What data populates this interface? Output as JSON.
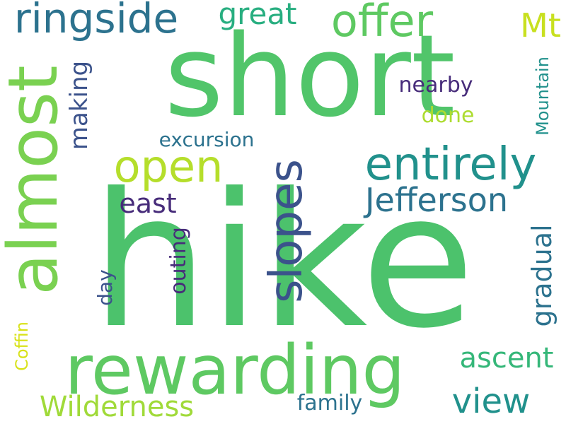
{
  "background": "#ffffff",
  "palette": {
    "dark_purple": "#472c7a",
    "blue": "#3b528b",
    "teal_blue": "#2c728e",
    "teal": "#21918c",
    "green_teal": "#28ae80",
    "green": "#5ec962",
    "light_green": "#addc30",
    "yellow_green": "#c8e020"
  },
  "words": [
    {
      "text": "hike",
      "orientation": "horizontal",
      "color": "#4cc26c"
    },
    {
      "text": "short",
      "orientation": "horizontal",
      "color": "#51c56a"
    },
    {
      "text": "rewarding",
      "orientation": "horizontal",
      "color": "#5ec962"
    },
    {
      "text": "almost",
      "orientation": "vertical",
      "color": "#7ad151"
    },
    {
      "text": "entirely",
      "orientation": "horizontal",
      "color": "#21918c"
    },
    {
      "text": "slopes",
      "orientation": "vertical",
      "color": "#3b528b"
    },
    {
      "text": "open",
      "orientation": "horizontal",
      "color": "#b5de2b"
    },
    {
      "text": "offer",
      "orientation": "horizontal",
      "color": "#5ec962"
    },
    {
      "text": "ringside",
      "orientation": "horizontal",
      "color": "#2c728e"
    },
    {
      "text": "Jefferson",
      "orientation": "horizontal",
      "color": "#2c728e"
    },
    {
      "text": "view",
      "orientation": "horizontal",
      "color": "#21918c"
    },
    {
      "text": "Mt",
      "orientation": "horizontal",
      "color": "#c8e020"
    },
    {
      "text": "great",
      "orientation": "horizontal",
      "color": "#28ae80"
    },
    {
      "text": "Wilderness",
      "orientation": "horizontal",
      "color": "#a0da39"
    },
    {
      "text": "ascent",
      "orientation": "horizontal",
      "color": "#35b779"
    },
    {
      "text": "gradual",
      "orientation": "vertical",
      "color": "#2c728e"
    },
    {
      "text": "east",
      "orientation": "horizontal",
      "color": "#472c7a"
    },
    {
      "text": "making",
      "orientation": "vertical",
      "color": "#3b528b"
    },
    {
      "text": "excursion",
      "orientation": "horizontal",
      "color": "#2c728e"
    },
    {
      "text": "outing",
      "orientation": "vertical",
      "color": "#472c7a"
    },
    {
      "text": "nearby",
      "orientation": "horizontal",
      "color": "#472c7a"
    },
    {
      "text": "done",
      "orientation": "horizontal",
      "color": "#addc30"
    },
    {
      "text": "Mountain",
      "orientation": "vertical",
      "color": "#21918c"
    },
    {
      "text": "family",
      "orientation": "horizontal",
      "color": "#2c728e"
    },
    {
      "text": "day",
      "orientation": "vertical",
      "color": "#3b528b"
    },
    {
      "text": "Coffin",
      "orientation": "vertical",
      "color": "#d8e219"
    }
  ]
}
